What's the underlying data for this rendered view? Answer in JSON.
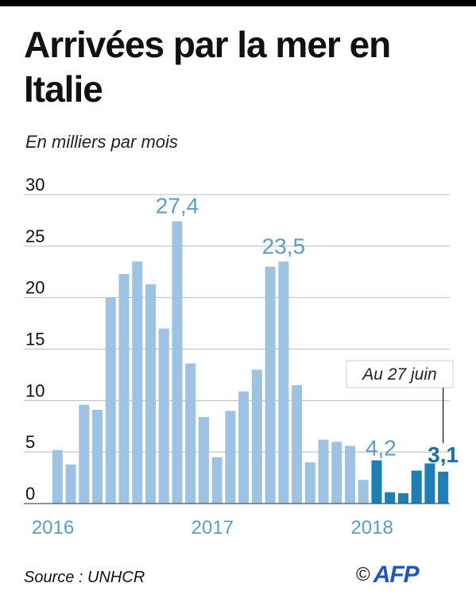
{
  "title": "Arrivées par la mer en Italie",
  "subtitle": "En milliers par mois",
  "source": "Source : UNHCR",
  "logo": {
    "copyright": "©",
    "text": "AFP"
  },
  "colors": {
    "light_bar": "#9ec3e2",
    "dark_bar": "#1f7fb5",
    "label_light": "#5a9cc9",
    "label_dark": "#1a6ea6",
    "grid": "#bcbcbc"
  },
  "chart_data": {
    "type": "bar",
    "ylim": [
      0,
      30
    ],
    "yticks": [
      "0",
      "5",
      "10",
      "15",
      "20",
      "25",
      "30"
    ],
    "year_labels": [
      {
        "label": "2016",
        "index": 0
      },
      {
        "label": "2017",
        "index": 12
      },
      {
        "label": "2018",
        "index": 24
      }
    ],
    "values": [
      5.2,
      3.8,
      9.6,
      9.1,
      20.0,
      22.3,
      23.5,
      21.3,
      17.0,
      27.4,
      13.6,
      8.4,
      4.5,
      9.0,
      10.9,
      13.0,
      23.0,
      23.5,
      11.5,
      4.0,
      6.2,
      6.0,
      5.6,
      2.3,
      4.2,
      1.1,
      1.0,
      3.2,
      3.9,
      3.1
    ],
    "highlight_from_index": 24,
    "data_labels": [
      {
        "index": 9,
        "text": "27,4",
        "style": "light"
      },
      {
        "index": 17,
        "text": "23,5",
        "style": "light"
      },
      {
        "index": 24,
        "text": "4,2",
        "style": "light"
      },
      {
        "index": 29,
        "text": "3,1",
        "style": "dark"
      }
    ],
    "annotation": {
      "text": "Au 27 juin",
      "index": 29
    }
  }
}
